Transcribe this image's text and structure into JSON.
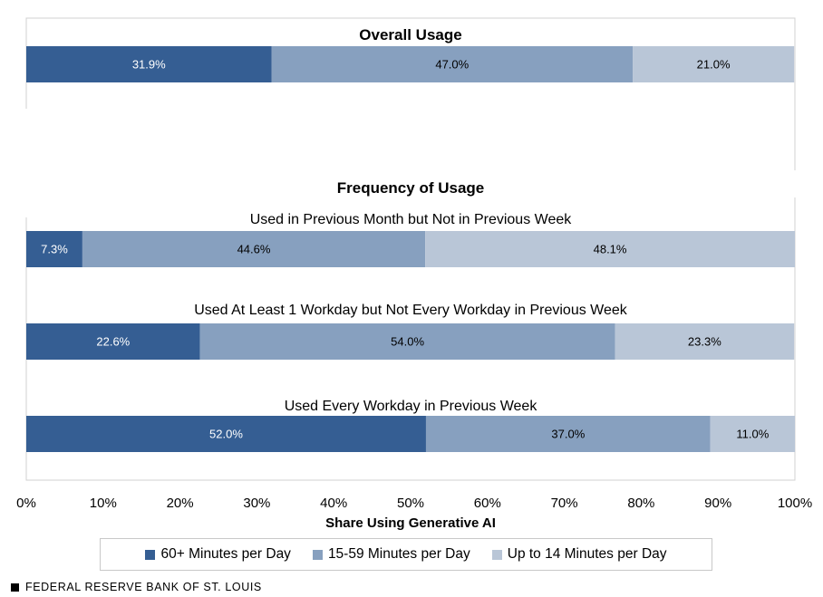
{
  "chart_data": {
    "type": "bar",
    "orientation": "horizontal",
    "stacked": true,
    "sections": [
      {
        "title": "Overall Usage",
        "groups": [
          {
            "label": "",
            "values": [
              31.9,
              47.0,
              21.0
            ],
            "value_labels": [
              "31.9%",
              "47.0%",
              "21.0%"
            ]
          }
        ]
      },
      {
        "title": "Frequency of Usage",
        "groups": [
          {
            "label": "Used in Previous Month but Not in Previous Week",
            "values": [
              7.3,
              44.6,
              48.1
            ],
            "value_labels": [
              "7.3%",
              "44.6%",
              "48.1%"
            ]
          },
          {
            "label": "Used At Least 1 Workday but Not Every Workday in Previous Week",
            "values": [
              22.6,
              54.0,
              23.3
            ],
            "value_labels": [
              "22.6%",
              "54.0%",
              "23.3%"
            ]
          },
          {
            "label": "Used Every Workday in Previous Week",
            "values": [
              52.0,
              37.0,
              11.0
            ],
            "value_labels": [
              "52.0%",
              "37.0%",
              "11.0%"
            ]
          }
        ]
      }
    ],
    "series": [
      {
        "name": "60+ Minutes per Day",
        "color": "#355e93",
        "label_color": "#ffffff"
      },
      {
        "name": "15-59 Minutes per Day",
        "color": "#87a0bf",
        "label_color": "#000000"
      },
      {
        "name": "Up to 14 Minutes per Day",
        "color": "#b9c6d7",
        "label_color": "#000000"
      }
    ],
    "xlabel": "Share Using Generative AI",
    "xlim": [
      0,
      100
    ],
    "xticks": [
      0,
      10,
      20,
      30,
      40,
      50,
      60,
      70,
      80,
      90,
      100
    ],
    "xtick_labels": [
      "0%",
      "10%",
      "20%",
      "30%",
      "40%",
      "50%",
      "60%",
      "70%",
      "80%",
      "90%",
      "100%"
    ],
    "legend_position": "bottom",
    "grid": false
  },
  "footer": {
    "source": "FEDERAL RESERVE BANK OF ST. LOUIS"
  }
}
